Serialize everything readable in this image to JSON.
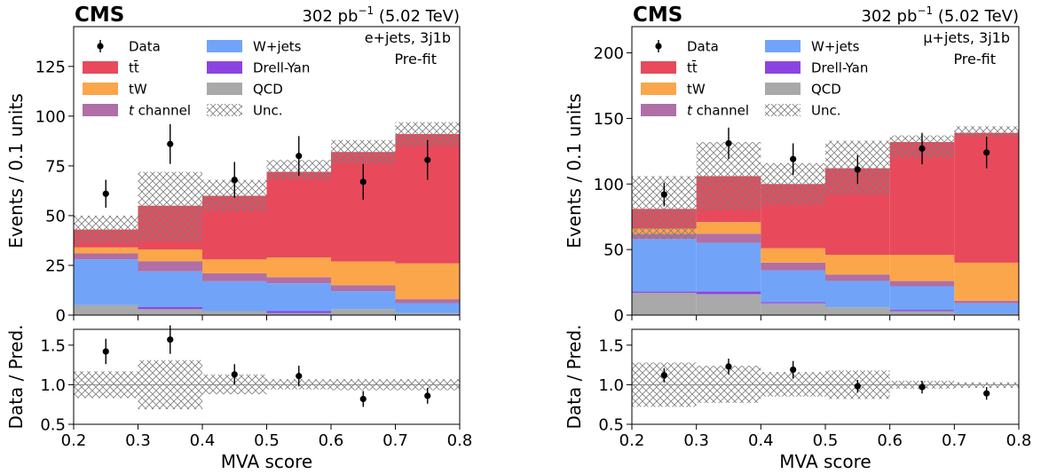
{
  "chart_data": [
    {
      "type": "bar",
      "cms_label": "CMS",
      "lumi": {
        "value": "302 pb",
        "exp": "−1",
        "energy": "(5.02 TeV)"
      },
      "channel_label": "e+jets, 3j1b",
      "fit_label": "Pre-fit",
      "xlabel": "MVA score",
      "ylabel": "Events / 0.1 units",
      "ratio_ylabel": "Data / Pred.",
      "bin_edges": [
        0.2,
        0.3,
        0.4,
        0.5,
        0.6,
        0.7,
        0.8
      ],
      "xlim": [
        0.2,
        0.8
      ],
      "ylim": [
        0,
        145
      ],
      "ratio_ylim": [
        0.5,
        1.7
      ],
      "xticks": [
        "0.2",
        "0.3",
        "0.4",
        "0.5",
        "0.6",
        "0.7",
        "0.8"
      ],
      "yticks": [
        0,
        25,
        50,
        75,
        100,
        125
      ],
      "ratio_yticks": [
        "0.5",
        "1.0",
        "1.5"
      ],
      "stack": [
        {
          "name": "QCD",
          "color": "#a9a9a9",
          "values": [
            5,
            3,
            2,
            1,
            3,
            1
          ]
        },
        {
          "name": "Drell-Yan",
          "color": "#8c44e0",
          "values": [
            0,
            1,
            0,
            1,
            0,
            0
          ]
        },
        {
          "name": "W+jets",
          "color": "#71a4f9",
          "values": [
            23,
            18,
            15,
            14,
            9,
            5
          ]
        },
        {
          "name": "t channel",
          "color": "#b06fa6",
          "values": [
            3,
            5,
            4,
            3,
            3,
            2
          ]
        },
        {
          "name": "tW",
          "color": "#fba64a",
          "values": [
            3,
            6,
            7,
            10,
            12,
            18
          ]
        },
        {
          "name": "tt̄",
          "color": "#e84a5c",
          "values": [
            9,
            22,
            32,
            43,
            55,
            65
          ]
        }
      ],
      "unc_band": [
        [
          36,
          50
        ],
        [
          37,
          72
        ],
        [
          52,
          68
        ],
        [
          68,
          78
        ],
        [
          76,
          88
        ],
        [
          85,
          97
        ]
      ],
      "data": {
        "values": [
          61,
          86,
          68,
          80,
          67,
          78
        ],
        "errors": [
          7,
          10,
          9,
          10,
          9,
          10
        ]
      },
      "ratio": {
        "values": [
          1.42,
          1.57,
          1.13,
          1.11,
          0.82,
          0.86
        ],
        "errors": [
          0.16,
          0.18,
          0.13,
          0.13,
          0.1,
          0.1
        ]
      },
      "ratio_band": [
        [
          0.83,
          1.17
        ],
        [
          0.69,
          1.31
        ],
        [
          0.88,
          1.13
        ],
        [
          0.94,
          1.07
        ],
        [
          0.93,
          1.07
        ],
        [
          0.93,
          1.07
        ]
      ]
    },
    {
      "type": "bar",
      "cms_label": "CMS",
      "lumi": {
        "value": "302 pb",
        "exp": "−1",
        "energy": "(5.02 TeV)"
      },
      "channel_label": "μ+jets, 3j1b",
      "fit_label": "Pre-fit",
      "xlabel": "MVA score",
      "ylabel": "Events / 0.1 units",
      "ratio_ylabel": "Data / Pred.",
      "bin_edges": [
        0.2,
        0.3,
        0.4,
        0.5,
        0.6,
        0.7,
        0.8
      ],
      "xlim": [
        0.2,
        0.8
      ],
      "ylim": [
        0,
        220
      ],
      "ratio_ylim": [
        0.5,
        1.7
      ],
      "xticks": [
        "0.2",
        "0.3",
        "0.4",
        "0.5",
        "0.6",
        "0.7",
        "0.8"
      ],
      "yticks": [
        0,
        50,
        100,
        150,
        200
      ],
      "ratio_yticks": [
        "0.5",
        "1.0",
        "1.5"
      ],
      "stack": [
        {
          "name": "QCD",
          "color": "#a9a9a9",
          "values": [
            17,
            16,
            9,
            6,
            3,
            1
          ]
        },
        {
          "name": "Drell-Yan",
          "color": "#8c44e0",
          "values": [
            1,
            2,
            1,
            0,
            1,
            0
          ]
        },
        {
          "name": "W+jets",
          "color": "#71a4f9",
          "values": [
            40,
            37,
            24,
            20,
            18,
            8
          ]
        },
        {
          "name": "t channel",
          "color": "#b06fa6",
          "values": [
            4,
            7,
            6,
            5,
            4,
            2
          ]
        },
        {
          "name": "tW",
          "color": "#fba64a",
          "values": [
            4,
            9,
            11,
            15,
            20,
            29
          ]
        },
        {
          "name": "tt̄",
          "color": "#e84a5c",
          "values": [
            15,
            35,
            49,
            66,
            86,
            99
          ]
        }
      ],
      "unc_band": [
        [
          58,
          106
        ],
        [
          80,
          132
        ],
        [
          84,
          116
        ],
        [
          92,
          133
        ],
        [
          120,
          137
        ],
        [
          136,
          144
        ]
      ],
      "data": {
        "values": [
          92,
          131,
          119,
          111,
          127,
          124
        ],
        "errors": [
          9,
          12,
          12,
          11,
          12,
          12
        ]
      },
      "ratio": {
        "values": [
          1.12,
          1.23,
          1.19,
          0.98,
          0.97,
          0.89
        ],
        "errors": [
          0.09,
          0.1,
          0.11,
          0.08,
          0.08,
          0.08
        ]
      },
      "ratio_band": [
        [
          0.72,
          1.28
        ],
        [
          0.77,
          1.24
        ],
        [
          0.85,
          1.16
        ],
        [
          0.82,
          1.18
        ],
        [
          0.95,
          1.05
        ],
        [
          0.96,
          1.03
        ]
      ]
    }
  ],
  "legend": {
    "entries": [
      {
        "label": "Data",
        "kind": "data"
      },
      {
        "label": "tt̄",
        "kind": "fill",
        "color": "#e84a5c"
      },
      {
        "label": "tW",
        "kind": "fill",
        "color": "#fba64a"
      },
      {
        "label": "t channel",
        "kind": "fill",
        "color": "#b06fa6"
      },
      {
        "label": "W+jets",
        "kind": "fill",
        "color": "#71a4f9"
      },
      {
        "label": "Drell-Yan",
        "kind": "fill",
        "color": "#8c44e0"
      },
      {
        "label": "QCD",
        "kind": "fill",
        "color": "#a9a9a9"
      },
      {
        "label": "Unc.",
        "kind": "hatch"
      }
    ]
  }
}
